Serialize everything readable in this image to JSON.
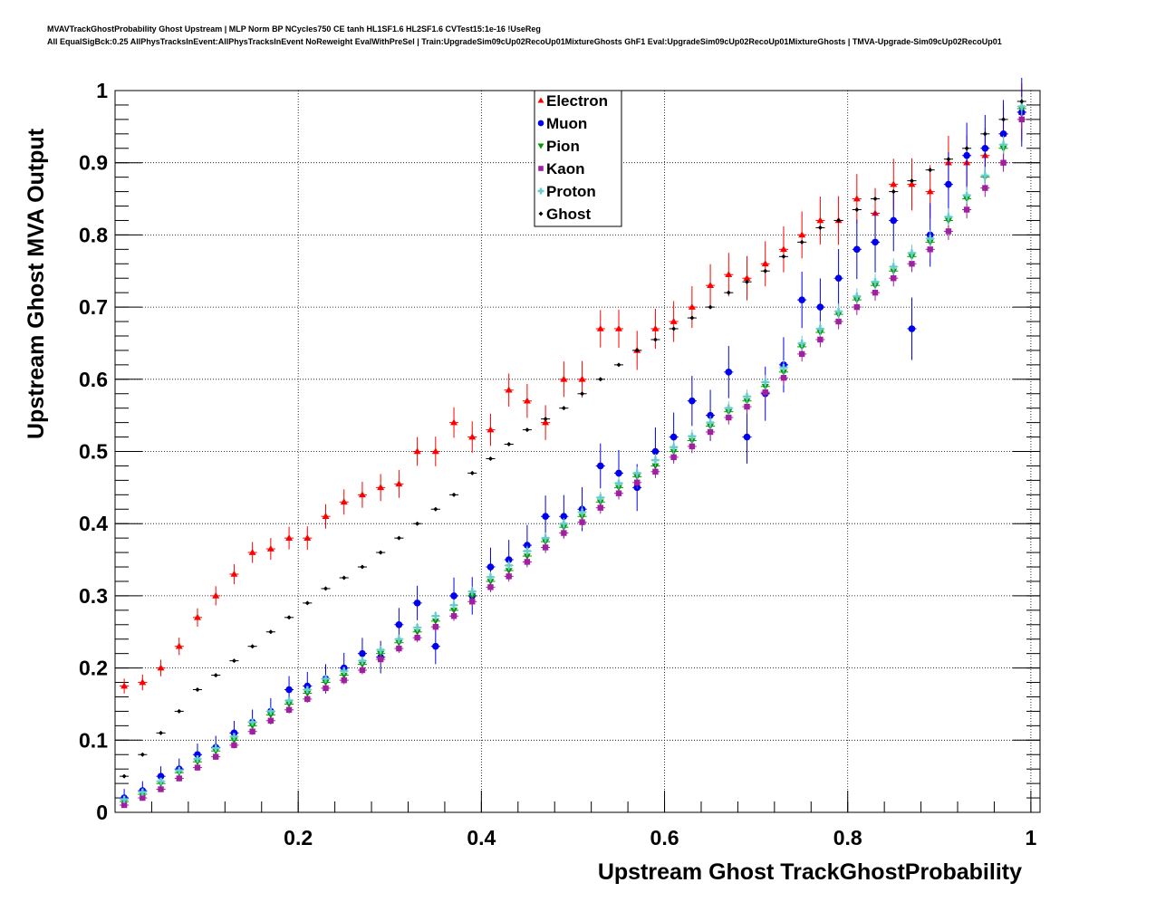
{
  "title_line1": "MVAVTrackGhostProbability Ghost Upstream | MLP Norm BP NCycles750 CE tanh HL1SF1.6 HL2SF1.6 CVTest15:1e-16 !UseReg",
  "title_line2": "All EqualSigBck:0.25 AllPhysTracksInEvent:AllPhysTracksInEvent NoReweight EvalWithPreSel | Train:UpgradeSim09cUp02RecoUp01MixtureGhosts GhF1 Eval:UpgradeSim09cUp02RecoUp01MixtureGhosts | TMVA-Upgrade-Sim09cUp02RecoUp01",
  "chart_data": {
    "type": "scatter",
    "title": "MVAVTrackGhostProbability Ghost Upstream",
    "xlabel": "Upstream Ghost TrackGhostProbability",
    "ylabel": "Upstream Ghost MVA Output",
    "xlim": [
      0,
      1.01
    ],
    "ylim": [
      0,
      1
    ],
    "grid": true,
    "legend_placement": "top-center",
    "x_ticks": [
      "0.2",
      "0.4",
      "0.6",
      "0.8",
      "1"
    ],
    "y_ticks": [
      "0",
      "0.1",
      "0.2",
      "0.3",
      "0.4",
      "0.5",
      "0.6",
      "0.7",
      "0.8",
      "0.9",
      "1"
    ],
    "x": [
      0.01,
      0.03,
      0.05,
      0.07,
      0.09,
      0.11,
      0.13,
      0.15,
      0.17,
      0.19,
      0.21,
      0.23,
      0.25,
      0.27,
      0.29,
      0.31,
      0.33,
      0.35,
      0.37,
      0.39,
      0.41,
      0.43,
      0.45,
      0.47,
      0.49,
      0.51,
      0.53,
      0.55,
      0.57,
      0.59,
      0.61,
      0.63,
      0.65,
      0.67,
      0.69,
      0.71,
      0.73,
      0.75,
      0.77,
      0.79,
      0.81,
      0.83,
      0.85,
      0.87,
      0.89,
      0.91,
      0.93,
      0.95,
      0.97,
      0.99
    ],
    "x_halfwidth": 0.005,
    "series": [
      {
        "name": "Electron",
        "color": "#ff0000",
        "marker": "triangle-up",
        "yerr": 0.025,
        "values": [
          0.175,
          0.18,
          0.2,
          0.23,
          0.27,
          0.3,
          0.33,
          0.36,
          0.365,
          0.38,
          0.38,
          0.41,
          0.43,
          0.44,
          0.45,
          0.455,
          0.5,
          0.5,
          0.54,
          0.52,
          0.53,
          0.585,
          0.57,
          0.54,
          0.6,
          0.6,
          0.67,
          0.67,
          0.64,
          0.67,
          0.68,
          0.7,
          0.73,
          0.745,
          0.74,
          0.76,
          0.78,
          0.8,
          0.82,
          0.82,
          0.85,
          0.83,
          0.87,
          0.87,
          0.86,
          0.9,
          0.9,
          0.91,
          0.94,
          0.97
        ]
      },
      {
        "name": "Muon",
        "color": "#0000ee",
        "marker": "circle",
        "yerr": 0.03,
        "values": [
          0.02,
          0.03,
          0.05,
          0.06,
          0.08,
          0.09,
          0.11,
          0.125,
          0.14,
          0.17,
          0.175,
          0.185,
          0.2,
          0.22,
          0.215,
          0.26,
          0.29,
          0.23,
          0.3,
          0.3,
          0.34,
          0.35,
          0.37,
          0.41,
          0.41,
          0.42,
          0.48,
          0.47,
          0.45,
          0.5,
          0.52,
          0.57,
          0.55,
          0.61,
          0.52,
          0.58,
          0.62,
          0.71,
          0.7,
          0.74,
          0.78,
          0.79,
          0.82,
          0.67,
          0.8,
          0.87,
          0.91,
          0.92,
          0.94,
          0.97
        ]
      },
      {
        "name": "Pion",
        "color": "#009900",
        "marker": "triangle-down",
        "yerr": 0.006,
        "values": [
          0.015,
          0.025,
          0.04,
          0.055,
          0.07,
          0.085,
          0.1,
          0.12,
          0.135,
          0.15,
          0.165,
          0.18,
          0.19,
          0.205,
          0.22,
          0.235,
          0.25,
          0.265,
          0.28,
          0.3,
          0.32,
          0.335,
          0.355,
          0.375,
          0.395,
          0.41,
          0.43,
          0.45,
          0.465,
          0.48,
          0.5,
          0.515,
          0.535,
          0.555,
          0.57,
          0.59,
          0.61,
          0.645,
          0.665,
          0.69,
          0.71,
          0.73,
          0.75,
          0.77,
          0.79,
          0.82,
          0.85,
          0.88,
          0.92,
          0.975
        ]
      },
      {
        "name": "Kaon",
        "color": "#a020a0",
        "marker": "square",
        "yerr": 0.008,
        "values": [
          0.01,
          0.02,
          0.032,
          0.047,
          0.062,
          0.077,
          0.093,
          0.112,
          0.127,
          0.142,
          0.157,
          0.172,
          0.183,
          0.197,
          0.212,
          0.227,
          0.242,
          0.257,
          0.272,
          0.292,
          0.312,
          0.327,
          0.347,
          0.367,
          0.387,
          0.402,
          0.422,
          0.442,
          0.457,
          0.472,
          0.492,
          0.507,
          0.527,
          0.547,
          0.562,
          0.582,
          0.602,
          0.635,
          0.655,
          0.68,
          0.7,
          0.72,
          0.74,
          0.76,
          0.78,
          0.805,
          0.835,
          0.865,
          0.9,
          0.96
        ]
      },
      {
        "name": "Proton",
        "color": "#66cccc",
        "marker": "plus",
        "yerr": 0.008,
        "values": [
          0.018,
          0.028,
          0.043,
          0.058,
          0.074,
          0.089,
          0.105,
          0.125,
          0.14,
          0.155,
          0.17,
          0.185,
          0.196,
          0.21,
          0.225,
          0.24,
          0.256,
          0.272,
          0.287,
          0.306,
          0.326,
          0.342,
          0.362,
          0.38,
          0.4,
          0.416,
          0.436,
          0.456,
          0.47,
          0.488,
          0.506,
          0.521,
          0.54,
          0.56,
          0.576,
          0.596,
          0.616,
          0.65,
          0.67,
          0.694,
          0.715,
          0.735,
          0.756,
          0.775,
          0.795,
          0.825,
          0.855,
          0.882,
          0.925,
          0.978
        ]
      },
      {
        "name": "Ghost",
        "color": "#000000",
        "marker": "diamond",
        "yerr": 0.002,
        "values": [
          0.05,
          0.08,
          0.11,
          0.14,
          0.17,
          0.19,
          0.21,
          0.23,
          0.25,
          0.27,
          0.29,
          0.31,
          0.325,
          0.34,
          0.36,
          0.38,
          0.4,
          0.42,
          0.44,
          0.47,
          0.49,
          0.51,
          0.53,
          0.545,
          0.56,
          0.58,
          0.6,
          0.62,
          0.64,
          0.655,
          0.67,
          0.685,
          0.7,
          0.72,
          0.735,
          0.75,
          0.77,
          0.79,
          0.81,
          0.82,
          0.835,
          0.85,
          0.86,
          0.875,
          0.89,
          0.905,
          0.92,
          0.94,
          0.96,
          0.985
        ]
      }
    ]
  }
}
